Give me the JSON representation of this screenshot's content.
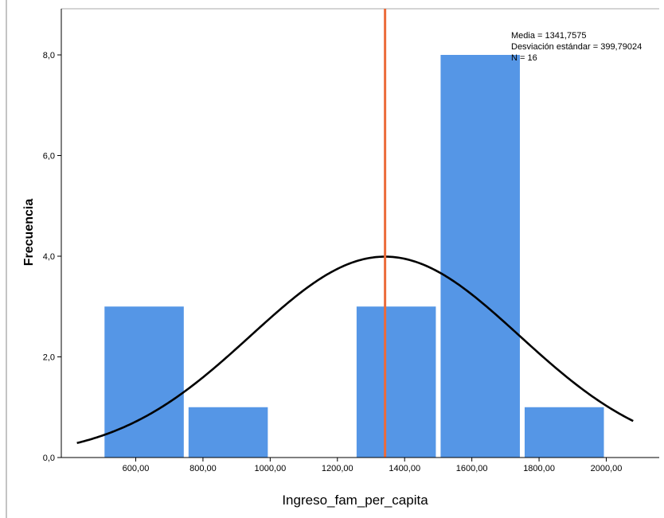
{
  "chart_data": {
    "type": "bar",
    "subtype": "histogram",
    "xlabel": "Ingreso_fam_per_capita",
    "ylabel": "Frecuencia",
    "xlim": [
      425,
      2075
    ],
    "ylim": [
      0,
      8.8
    ],
    "bin_width": 250,
    "bins": [
      {
        "start": 500,
        "end": 750,
        "value": 3
      },
      {
        "start": 750,
        "end": 1000,
        "value": 1
      },
      {
        "start": 1000,
        "end": 1250,
        "value": 0
      },
      {
        "start": 1250,
        "end": 1500,
        "value": 3
      },
      {
        "start": 1500,
        "end": 1750,
        "value": 8
      },
      {
        "start": 1750,
        "end": 2000,
        "value": 1
      }
    ],
    "x_ticks": [
      600,
      800,
      1000,
      1200,
      1400,
      1600,
      1800,
      2000
    ],
    "x_tick_labels": [
      "600,00",
      "800,00",
      "1000,00",
      "1200,00",
      "1400,00",
      "1600,00",
      "1800,00",
      "2000,00"
    ],
    "y_ticks": [
      0,
      2,
      4,
      6,
      8
    ],
    "y_tick_labels": [
      "0,0",
      "2,0",
      "4,0",
      "6,0",
      "8,0"
    ],
    "mean": 1341.7575,
    "std": 399.79024,
    "n": 16,
    "stats_text": [
      "Media = 1341,7575",
      "Desviación estándar = 399,79024",
      "N = 16"
    ],
    "mean_line": true,
    "normal_curve": true,
    "colors": {
      "bar": "#5596e6",
      "bar_border": "#ffffff",
      "curve": "#000000",
      "mean_line": "#ec6b3a",
      "axis": "#000000",
      "frame": "#a8a8a8"
    },
    "grid": false,
    "legend": "none"
  }
}
